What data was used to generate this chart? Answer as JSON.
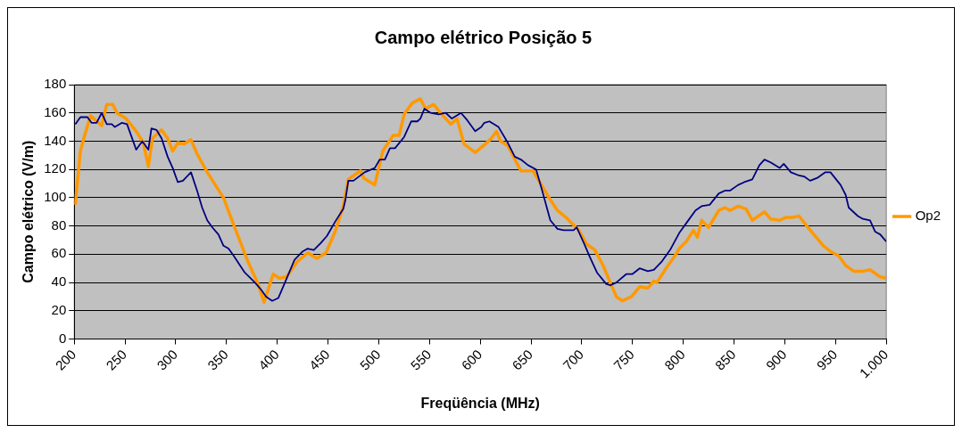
{
  "chart_data": {
    "type": "line",
    "title": "Campo elétrico Posição 5",
    "xlabel": "Freqüência (MHz)",
    "ylabel": "Campo elétrico (V/m)",
    "xlim": [
      200,
      1000
    ],
    "xticks": [
      200,
      250,
      300,
      350,
      400,
      450,
      500,
      550,
      600,
      650,
      700,
      750,
      800,
      850,
      900,
      950,
      {
        "value": 1000,
        "label": "1.000"
      }
    ],
    "ylim": [
      0,
      180
    ],
    "yticks": [
      0,
      20,
      40,
      60,
      80,
      100,
      120,
      140,
      160,
      180
    ],
    "grid": "y",
    "legend": "right",
    "marker": "none",
    "line_style": "solid",
    "series": [
      {
        "name": "Op2",
        "color": "#ff9900",
        "x": [
          201,
          206,
          211,
          216,
          227,
          232,
          238,
          242,
          251,
          261,
          268,
          273,
          277,
          286,
          292,
          297,
          302,
          308,
          315,
          321,
          331,
          347,
          358,
          371,
          381,
          387,
          396,
          402,
          409,
          420,
          430,
          439,
          448,
          457,
          465,
          470,
          482,
          485,
          496,
          504,
          514,
          520,
          525,
          533,
          541,
          546,
          554,
          562,
          571,
          577,
          584,
          595,
          605,
          611,
          616,
          620,
          627,
          640,
          652,
          666,
          676,
          686,
          697,
          705,
          713,
          721,
          734,
          740,
          749,
          757,
          765,
          771,
          774,
          783,
          791,
          796,
          803,
          810,
          814,
          818,
          825,
          835,
          841,
          846,
          854,
          862,
          868,
          880,
          886,
          895,
          901,
          907,
          914,
          924,
          938,
          945,
          953,
          960,
          968,
          977,
          984,
          994,
          1000
        ],
        "values": [
          95,
          133,
          146,
          158,
          151,
          166,
          166,
          160,
          156,
          147,
          139,
          122,
          142,
          148,
          142,
          133,
          139,
          138,
          141,
          131,
          118,
          100,
          79,
          55,
          39,
          26,
          46,
          43,
          44,
          55,
          61,
          57,
          61,
          76,
          94,
          113,
          119,
          114,
          109,
          133,
          144,
          144,
          159,
          167,
          170,
          163,
          166,
          159,
          152,
          156,
          138,
          132,
          138,
          142,
          147,
          140,
          137,
          119,
          119,
          102,
          91,
          85,
          77,
          67,
          63,
          52,
          30,
          27,
          30,
          37,
          36,
          41,
          40,
          50,
          58,
          64,
          69,
          77,
          72,
          84,
          79,
          91,
          93,
          91,
          94,
          92,
          84,
          90,
          85,
          84,
          86,
          86,
          87,
          78,
          66,
          62,
          59,
          52,
          48,
          48,
          49,
          44,
          43
        ]
      },
      {
        "color": "#000080",
        "x": [
          201,
          206,
          213,
          217,
          222,
          227,
          232,
          237,
          240,
          247,
          252,
          256,
          261,
          267,
          273,
          276,
          281,
          286,
          292,
          297,
          302,
          307,
          311,
          315,
          321,
          326,
          331,
          336,
          342,
          347,
          352,
          357,
          368,
          378,
          384,
          389,
          395,
          401,
          407,
          417,
          425,
          430,
          436,
          443,
          449,
          457,
          465,
          467,
          470,
          475,
          486,
          496,
          501,
          506,
          511,
          516,
          525,
          532,
          538,
          541,
          545,
          551,
          559,
          566,
          572,
          581,
          587,
          595,
          601,
          604,
          609,
          618,
          627,
          634,
          640,
          647,
          655,
          661,
          669,
          676,
          682,
          692,
          695,
          702,
          708,
          715,
          724,
          728,
          734,
          744,
          750,
          757,
          765,
          771,
          779,
          787,
          796,
          804,
          812,
          818,
          826,
          835,
          841,
          846,
          854,
          860,
          868,
          875,
          880,
          886,
          895,
          899,
          906,
          913,
          919,
          925,
          932,
          940,
          945,
          955,
          960,
          963,
          972,
          977,
          984,
          989,
          994,
          1000
        ],
        "values": [
          152,
          157,
          157,
          153,
          153,
          160,
          152,
          152,
          150,
          153,
          152,
          144,
          134,
          140,
          134,
          149,
          148,
          142,
          129,
          121,
          111,
          112,
          115,
          118,
          105,
          93,
          84,
          79,
          74,
          66,
          64,
          59,
          47,
          40,
          35,
          30,
          27,
          29,
          39,
          56,
          62,
          64,
          63,
          68,
          73,
          83,
          92,
          98,
          112,
          112,
          118,
          121,
          127,
          127,
          135,
          135,
          143,
          154,
          154,
          156,
          163,
          160,
          159,
          160,
          156,
          160,
          155,
          147,
          150,
          153,
          154,
          150,
          139,
          129,
          127,
          123,
          120,
          105,
          84,
          78,
          77,
          77,
          79,
          68,
          58,
          47,
          39,
          38,
          40,
          46,
          46,
          50,
          48,
          49,
          55,
          63,
          75,
          83,
          91,
          94,
          95,
          103,
          105,
          105,
          109,
          111,
          113,
          123,
          127,
          125,
          121,
          124,
          118,
          116,
          115,
          112,
          114,
          118,
          118,
          109,
          102,
          93,
          87,
          85,
          84,
          76,
          74,
          69
        ]
      }
    ]
  }
}
